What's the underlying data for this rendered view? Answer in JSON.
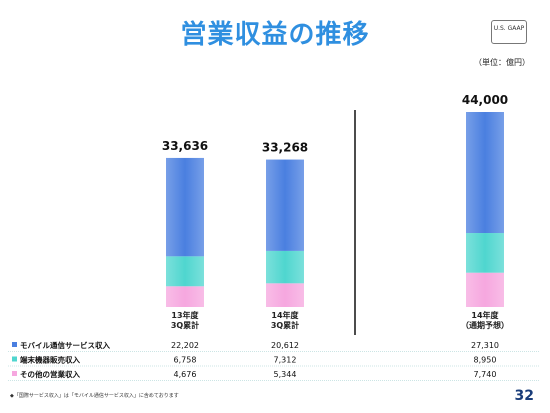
{
  "header": {
    "title": "営業収益の推移",
    "badge": "U.S. GAAP",
    "unit": "（単位：億円）"
  },
  "footnote": "◆「国際サービス収入」は「モバイル通信サービス収入」に含めております",
  "page_number": "32",
  "chart_data": {
    "type": "bar",
    "stacked": true,
    "categories": [
      "13年度\n3Q累計",
      "14年度\n3Q累計",
      "14年度\n（通期予想）"
    ],
    "totals": [
      "33,636",
      "33,268",
      "44,000"
    ],
    "series": [
      {
        "name": "モバイル通信サービス収入",
        "values": [
          22202,
          20612,
          27310
        ],
        "labels": [
          "22,202",
          "20,612",
          "27,310"
        ],
        "color": "#4a7fe0"
      },
      {
        "name": "端末機器販売収入",
        "values": [
          6758,
          7312,
          8950
        ],
        "labels": [
          "6,758",
          "7,312",
          "8,950"
        ],
        "color": "#4fd6cf"
      },
      {
        "name": "その他の営業収入",
        "values": [
          4676,
          5344,
          7740
        ],
        "labels": [
          "4,676",
          "5,344",
          "7,740"
        ],
        "color": "#f6a7df"
      }
    ],
    "ylim": [
      0,
      44000
    ]
  }
}
